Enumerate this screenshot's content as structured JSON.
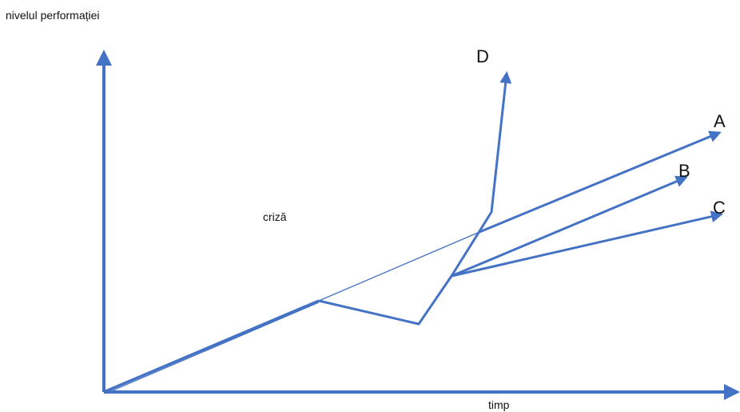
{
  "labels": {
    "y_axis": "nivelul performației",
    "x_axis": "timp",
    "crisis": "criză"
  },
  "scenarios": [
    {
      "id": "A",
      "label": "A"
    },
    {
      "id": "B",
      "label": "B"
    },
    {
      "id": "C",
      "label": "C"
    },
    {
      "id": "D",
      "label": "D"
    }
  ],
  "colors": {
    "line": "#4472C4",
    "crisis_marker": "#c7d3ea",
    "text": "#111111"
  }
}
